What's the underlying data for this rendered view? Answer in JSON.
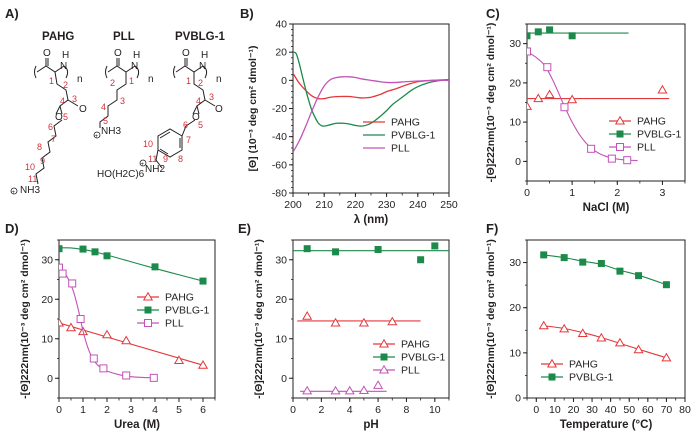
{
  "colors": {
    "PAHG": "#e3383c",
    "PVBLG-1": "#1c8a4a",
    "PLL": "#c353b8",
    "axis": "#231f20"
  },
  "structures": {
    "label": "A)",
    "compounds": [
      {
        "name": "PAHG",
        "carbons": [
          "1",
          "2",
          "3",
          "4",
          "5",
          "6",
          "7",
          "8",
          "9",
          "10",
          "11"
        ],
        "terminal": "NH3",
        "charge": "+"
      },
      {
        "name": "PLL",
        "carbons": [
          "1",
          "2",
          "3",
          "4",
          "5"
        ],
        "terminal": "NH3",
        "charge": "+"
      },
      {
        "name": "PVBLG-1",
        "carbons": [
          "1",
          "2",
          "3",
          "4",
          "5",
          "6",
          "7",
          "8",
          "9",
          "10",
          "11"
        ],
        "terminal": "NH2",
        "substituent": "HO(H2C)6",
        "charge": "+"
      }
    ],
    "atoms": {
      "O": "O",
      "H": "H",
      "N": "N",
      "n": "n"
    }
  },
  "chart_data": [
    {
      "id": "B",
      "panel_label": "B)",
      "type": "line",
      "title": "",
      "xlabel": "λ (nm)",
      "ylabel": "[Θ] (10⁻³ deg cm² dmol⁻¹)",
      "xlim": [
        200,
        250
      ],
      "ylim": [
        -80,
        40
      ],
      "xticks": [
        200,
        210,
        220,
        230,
        240,
        250
      ],
      "yticks": [
        -80,
        -60,
        -40,
        -20,
        0,
        20,
        40
      ],
      "legend": "center-right",
      "series": [
        {
          "name": "PAHG",
          "x": [
            200,
            202,
            204,
            206,
            208,
            210,
            212,
            215,
            218,
            220,
            222,
            225,
            228,
            230,
            233,
            236,
            240,
            245,
            250
          ],
          "y": [
            5,
            -2,
            -7,
            -11,
            -13,
            -13,
            -12,
            -11.5,
            -11.5,
            -12,
            -12.5,
            -12,
            -10,
            -8,
            -6,
            -3.5,
            -1,
            0,
            0.5
          ]
        },
        {
          "name": "PVBLG-1",
          "x": [
            200,
            201,
            202,
            203,
            204,
            205,
            206,
            207,
            208,
            209,
            210,
            212,
            214,
            216,
            218,
            220,
            222,
            224,
            226,
            228,
            230,
            232,
            235,
            238,
            240,
            243,
            246,
            250
          ],
          "y": [
            20,
            19,
            12,
            3,
            -6,
            -14,
            -21,
            -26,
            -30,
            -32,
            -32.5,
            -31.5,
            -30.5,
            -30.5,
            -31,
            -32,
            -32.5,
            -31.5,
            -29,
            -25.5,
            -21.5,
            -17,
            -12,
            -7,
            -4.5,
            -2,
            -0.5,
            0.5
          ]
        },
        {
          "name": "PLL",
          "x": [
            200,
            202,
            204,
            206,
            208,
            210,
            212,
            214,
            216,
            218,
            220,
            222,
            225,
            228,
            230,
            233,
            236,
            240,
            245,
            250
          ],
          "y": [
            -51,
            -43,
            -33,
            -22,
            -12,
            -4,
            0.5,
            2,
            2.5,
            2.5,
            2,
            1,
            0,
            -1,
            -1.5,
            -1.5,
            -1,
            -0.5,
            0,
            0
          ]
        }
      ]
    },
    {
      "id": "C",
      "panel_label": "C)",
      "type": "scatter",
      "title": "",
      "xlabel": "NaCl (M)",
      "ylabel": "-[Θ]222nm(10⁻³ deg cm² dmol⁻¹)",
      "xlim": [
        0,
        3.5
      ],
      "ylim": [
        -5,
        35
      ],
      "xticks": [
        0,
        1,
        2,
        3
      ],
      "yticks": [
        0,
        10,
        20,
        30
      ],
      "legend": "center-right",
      "series": [
        {
          "name": "PAHG",
          "marker": "open-triangle",
          "x": [
            0,
            0.25,
            0.5,
            1,
            3
          ],
          "y": [
            14,
            16,
            17,
            15.7,
            18.2
          ],
          "fit": {
            "type": "flat",
            "x": [
              0,
              3.15
            ],
            "y": [
              16,
              16
            ]
          }
        },
        {
          "name": "PVBLG-1",
          "marker": "filled-square",
          "x": [
            0,
            0.25,
            0.5,
            1
          ],
          "y": [
            32,
            33,
            33.5,
            32
          ],
          "fit": {
            "type": "flat",
            "x": [
              0,
              2.25
            ],
            "y": [
              32.7,
              32.7
            ]
          }
        },
        {
          "name": "PLL",
          "marker": "open-square",
          "x": [
            0,
            0.45,
            0.83,
            1.42,
            1.88,
            2.22
          ],
          "y": [
            28,
            24,
            13.8,
            3.2,
            0.7,
            0.3
          ],
          "fit": {
            "type": "sigmoid",
            "x": [
              0,
              0.2,
              0.4,
              0.6,
              0.8,
              1.0,
              1.2,
              1.4,
              1.6,
              1.8,
              2.0,
              2.2,
              2.45
            ],
            "y": [
              28,
              26.5,
              24.3,
              20,
              14.8,
              10,
              6.2,
              3.6,
              2,
              1.1,
              0.6,
              0.35,
              0.2
            ]
          }
        }
      ]
    },
    {
      "id": "D",
      "panel_label": "D)",
      "type": "scatter",
      "title": "",
      "xlabel": "Urea (M)",
      "ylabel": "-[Θ]222nm(10⁻³ deg cm² dmol⁻¹)",
      "xlim": [
        0,
        6.5
      ],
      "ylim": [
        -5,
        35
      ],
      "xticks": [
        0,
        1,
        2,
        3,
        4,
        5,
        6
      ],
      "yticks": [
        0,
        10,
        20,
        30
      ],
      "legend": "center-right",
      "series": [
        {
          "name": "PAHG",
          "marker": "open-triangle",
          "x": [
            0,
            0.5,
            1,
            2,
            2.8,
            5,
            6
          ],
          "y": [
            14,
            12.8,
            11.8,
            11,
            9.5,
            4.5,
            3.3
          ],
          "fit": {
            "type": "line",
            "x": [
              0,
              6
            ],
            "y": [
              14,
              3.3
            ]
          }
        },
        {
          "name": "PVBLG-1",
          "marker": "filled-square",
          "x": [
            0,
            1,
            1.5,
            2,
            4,
            6
          ],
          "y": [
            32.8,
            32.7,
            32,
            31,
            28.2,
            24.6
          ],
          "fit": {
            "type": "curve",
            "x": [
              0,
              0.5,
              1,
              1.5,
              2,
              3,
              4,
              5,
              6
            ],
            "y": [
              33,
              33,
              32.6,
              32,
              31.2,
              29.5,
              27.8,
              26.2,
              24.6
            ]
          }
        },
        {
          "name": "PLL",
          "marker": "open-square",
          "x": [
            0,
            0.15,
            0.55,
            0.9,
            1.45,
            1.85,
            2.8,
            3.95
          ],
          "y": [
            28,
            26.5,
            24,
            15,
            5,
            2.5,
            0.7,
            0.1
          ],
          "fit": {
            "type": "sigmoid",
            "x": [
              0,
              0.2,
              0.4,
              0.6,
              0.8,
              1.0,
              1.2,
              1.4,
              1.6,
              1.8,
              2.0,
              2.5,
              3.0,
              3.5,
              3.95
            ],
            "y": [
              28,
              26.8,
              25,
              22,
              17.5,
              12,
              7.8,
              5,
              3.4,
              2.5,
              1.8,
              0.9,
              0.4,
              0.2,
              0.1
            ]
          }
        }
      ]
    },
    {
      "id": "E",
      "panel_label": "E)",
      "type": "scatter",
      "title": "",
      "xlabel": "pH",
      "ylabel": "-[Θ]222nm(10⁻³ deg cm² dmol⁻¹)",
      "xlim": [
        0,
        11
      ],
      "ylim": [
        -5,
        35
      ],
      "xticks": [
        0,
        2,
        4,
        6,
        8,
        10
      ],
      "yticks": [
        0,
        10,
        20,
        30
      ],
      "legend": "center-right",
      "series": [
        {
          "name": "PAHG",
          "marker": "open-triangle",
          "x": [
            1,
            3,
            5,
            7
          ],
          "y": [
            15.7,
            14,
            14,
            14.3
          ],
          "fit": {
            "type": "flat",
            "x": [
              0.3,
              9
            ],
            "y": [
              14.5,
              14.5
            ]
          }
        },
        {
          "name": "PVBLG-1",
          "marker": "filled-square",
          "x": [
            1,
            3,
            6,
            9,
            10
          ],
          "y": [
            32.8,
            32,
            32.6,
            30,
            33.5
          ],
          "fit": {
            "type": "flat",
            "x": [
              0,
              11
            ],
            "y": [
              32.3,
              32.3
            ]
          }
        },
        {
          "name": "PLL",
          "marker": "open-triangle",
          "x": [
            1,
            3,
            4,
            5,
            6
          ],
          "y": [
            -3.2,
            -3.2,
            -3.2,
            -3.1,
            -1.8
          ],
          "fit": {
            "type": "flat",
            "x": [
              0.5,
              6.6
            ],
            "y": [
              -3.3,
              -3.3
            ]
          }
        }
      ]
    },
    {
      "id": "F",
      "panel_label": "F)",
      "type": "scatter",
      "title": "",
      "xlabel": "Temperature (°C)",
      "ylabel": "-[Θ]222nm(10⁻³ deg cm² dmol⁻¹)",
      "xlim": [
        -5,
        80
      ],
      "ylim": [
        0,
        35
      ],
      "xticks": [
        0,
        10,
        20,
        30,
        40,
        50,
        60,
        70,
        80
      ],
      "yticks": [
        0,
        10,
        20,
        30
      ],
      "legend": "bottom-left",
      "series": [
        {
          "name": "PAHG",
          "marker": "open-triangle",
          "x": [
            4,
            15,
            25,
            35,
            45,
            55,
            70
          ],
          "y": [
            16,
            15.3,
            14.3,
            13.3,
            12.2,
            10.7,
            8.9
          ],
          "fit": {
            "type": "curve",
            "x": [
              4,
              15,
              25,
              35,
              45,
              55,
              70
            ],
            "y": [
              16,
              15.4,
              14.5,
              13.4,
              12.1,
              10.8,
              8.9
            ]
          }
        },
        {
          "name": "PVBLG-1",
          "marker": "filled-square",
          "x": [
            4,
            15,
            25,
            35,
            45,
            55,
            70
          ],
          "y": [
            31.7,
            31.1,
            30.1,
            29.8,
            28.1,
            27.1,
            25.1
          ],
          "fit": {
            "type": "curve",
            "x": [
              4,
              15,
              25,
              35,
              45,
              55,
              70
            ],
            "y": [
              31.7,
              31.1,
              30.3,
              29.6,
              28.3,
              27.2,
              25.1
            ]
          }
        }
      ]
    }
  ]
}
